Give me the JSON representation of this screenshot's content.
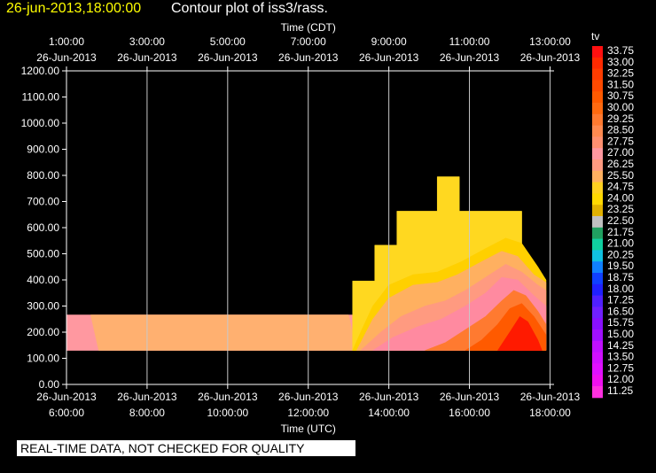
{
  "title": {
    "datetime": "26-jun-2013,18:00:00",
    "text": "Contour plot of iss3/rass."
  },
  "banner": "REAL-TIME DATA, NOT CHECKED FOR QUALITY",
  "chart_data": {
    "type": "heatmap",
    "top_axis_label": "Time (CDT)",
    "bottom_axis_label": "Time (UTC)",
    "x_range": [
      6,
      18.1
    ],
    "ylim": [
      0,
      1200
    ],
    "y_ticks": [
      "0.00",
      "100.00",
      "200.00",
      "300.00",
      "400.00",
      "500.00",
      "600.00",
      "700.00",
      "800.00",
      "900.00",
      "1000.00",
      "1100.00",
      "1200.00"
    ],
    "bottom_ticks": [
      {
        "x": 6,
        "date": "26-Jun-2013",
        "time": "6:00:00"
      },
      {
        "x": 8,
        "date": "26-Jun-2013",
        "time": "8:00:00"
      },
      {
        "x": 10,
        "date": "26-Jun-2013",
        "time": "10:00:00"
      },
      {
        "x": 12,
        "date": "26-Jun-2013",
        "time": "12:00:00"
      },
      {
        "x": 14,
        "date": "26-Jun-2013",
        "time": "14:00:00"
      },
      {
        "x": 16,
        "date": "26-Jun-2013",
        "time": "16:00:00"
      },
      {
        "x": 18,
        "date": "26-Jun-2013",
        "time": "18:00:00"
      }
    ],
    "top_ticks": [
      {
        "x": 6,
        "time": "1:00:00",
        "date": "26-Jun-2013"
      },
      {
        "x": 8,
        "time": "3:00:00",
        "date": "26-Jun-2013"
      },
      {
        "x": 10,
        "time": "5:00:00",
        "date": "26-Jun-2013"
      },
      {
        "x": 12,
        "time": "7:00:00",
        "date": "26-Jun-2013"
      },
      {
        "x": 14,
        "time": "9:00:00",
        "date": "26-Jun-2013"
      },
      {
        "x": 16,
        "time": "11:00:00",
        "date": "26-Jun-2013"
      },
      {
        "x": 18,
        "time": "13:00:00",
        "date": "26-Jun-2013"
      }
    ],
    "grid": "vertical",
    "colorbar": {
      "label": "tv",
      "levels": [
        "33.75",
        "33.00",
        "32.25",
        "31.50",
        "30.75",
        "30.00",
        "29.25",
        "28.50",
        "27.75",
        "27.00",
        "26.25",
        "25.50",
        "24.75",
        "24.00",
        "23.25",
        "22.50",
        "21.75",
        "21.00",
        "20.25",
        "19.50",
        "18.75",
        "18.00",
        "17.25",
        "16.50",
        "15.75",
        "15.00",
        "14.25",
        "13.50",
        "12.75",
        "12.00",
        "11.25"
      ],
      "colors": [
        "#ff1010",
        "#ff2a00",
        "#ff3c00",
        "#ff4a00",
        "#ff5a00",
        "#ff6a10",
        "#ff7a30",
        "#ff8a50",
        "#ff9070",
        "#ff98a0",
        "#ff9a80",
        "#ffb060",
        "#ffd020",
        "#ffd800",
        "#e0b000",
        "#c0c0c0",
        "#20a060",
        "#10d0a0",
        "#10c0e0",
        "#1080ff",
        "#1040ff",
        "#2020ff",
        "#5020ff",
        "#7020ff",
        "#8810ff",
        "#a010ff",
        "#c010ff",
        "#d010ff",
        "#e010ff",
        "#f010f0",
        "#ff30e0"
      ]
    },
    "regions": [
      {
        "name": "pink",
        "color": "#ff98a0",
        "points": [
          [
            6,
            130
          ],
          [
            6,
            266
          ],
          [
            13.4,
            266
          ],
          [
            13.55,
            130
          ]
        ]
      },
      {
        "name": "salmon",
        "color": "#ffb070",
        "points": [
          [
            6.8,
            130
          ],
          [
            6.6,
            266
          ],
          [
            13.0,
            266
          ],
          [
            13.2,
            130
          ]
        ]
      },
      {
        "name": "yellow-bright",
        "color": "#ffd820",
        "points": [
          [
            13.1,
            130
          ],
          [
            13.1,
            396
          ],
          [
            13.65,
            396
          ],
          [
            13.65,
            533
          ],
          [
            14.2,
            533
          ],
          [
            14.2,
            663
          ],
          [
            15.2,
            663
          ],
          [
            15.2,
            795
          ],
          [
            15.75,
            795
          ],
          [
            15.75,
            663
          ],
          [
            17.3,
            663
          ],
          [
            17.3,
            530
          ],
          [
            17.9,
            400
          ],
          [
            17.9,
            130
          ]
        ]
      },
      {
        "name": "yellow-mid",
        "color": "#ffd000",
        "points": [
          [
            13.1,
            130
          ],
          [
            13.3,
            200
          ],
          [
            13.6,
            300
          ],
          [
            14.0,
            380
          ],
          [
            14.6,
            420
          ],
          [
            15.2,
            430
          ],
          [
            15.8,
            470
          ],
          [
            16.4,
            520
          ],
          [
            16.9,
            560
          ],
          [
            17.3,
            540
          ],
          [
            17.7,
            450
          ],
          [
            17.9,
            400
          ],
          [
            17.9,
            130
          ]
        ]
      },
      {
        "name": "orange-light",
        "color": "#ffb060",
        "points": [
          [
            13.2,
            130
          ],
          [
            13.6,
            250
          ],
          [
            14.0,
            330
          ],
          [
            14.6,
            380
          ],
          [
            15.2,
            390
          ],
          [
            15.7,
            420
          ],
          [
            16.3,
            470
          ],
          [
            16.8,
            510
          ],
          [
            17.2,
            490
          ],
          [
            17.6,
            420
          ],
          [
            17.9,
            390
          ],
          [
            17.9,
            130
          ]
        ]
      },
      {
        "name": "pink-light",
        "color": "#ff9a80",
        "points": [
          [
            13.3,
            130
          ],
          [
            13.8,
            200
          ],
          [
            14.3,
            260
          ],
          [
            14.9,
            300
          ],
          [
            15.4,
            320
          ],
          [
            15.9,
            360
          ],
          [
            16.5,
            420
          ],
          [
            16.9,
            460
          ],
          [
            17.3,
            430
          ],
          [
            17.7,
            380
          ],
          [
            17.9,
            360
          ],
          [
            17.9,
            130
          ]
        ]
      },
      {
        "name": "pink-dark",
        "color": "#ff8aa0",
        "points": [
          [
            13.6,
            130
          ],
          [
            14.1,
            180
          ],
          [
            14.7,
            220
          ],
          [
            15.3,
            250
          ],
          [
            15.9,
            300
          ],
          [
            16.4,
            350
          ],
          [
            16.8,
            410
          ],
          [
            17.2,
            400
          ],
          [
            17.6,
            340
          ],
          [
            17.9,
            300
          ],
          [
            17.9,
            130
          ]
        ]
      },
      {
        "name": "orange",
        "color": "#ff7a30",
        "points": [
          [
            14.9,
            130
          ],
          [
            15.4,
            160
          ],
          [
            15.9,
            210
          ],
          [
            16.4,
            260
          ],
          [
            16.8,
            320
          ],
          [
            17.1,
            360
          ],
          [
            17.4,
            340
          ],
          [
            17.7,
            280
          ],
          [
            17.9,
            230
          ],
          [
            17.9,
            130
          ]
        ]
      },
      {
        "name": "red-orange",
        "color": "#ff5a00",
        "points": [
          [
            15.9,
            130
          ],
          [
            16.3,
            170
          ],
          [
            16.7,
            230
          ],
          [
            17.0,
            290
          ],
          [
            17.3,
            310
          ],
          [
            17.6,
            260
          ],
          [
            17.9,
            190
          ],
          [
            17.9,
            130
          ]
        ]
      },
      {
        "name": "red",
        "color": "#ff1a00",
        "points": [
          [
            16.7,
            130
          ],
          [
            17.0,
            200
          ],
          [
            17.25,
            260
          ],
          [
            17.45,
            240
          ],
          [
            17.7,
            170
          ],
          [
            17.8,
            130
          ]
        ]
      }
    ]
  }
}
